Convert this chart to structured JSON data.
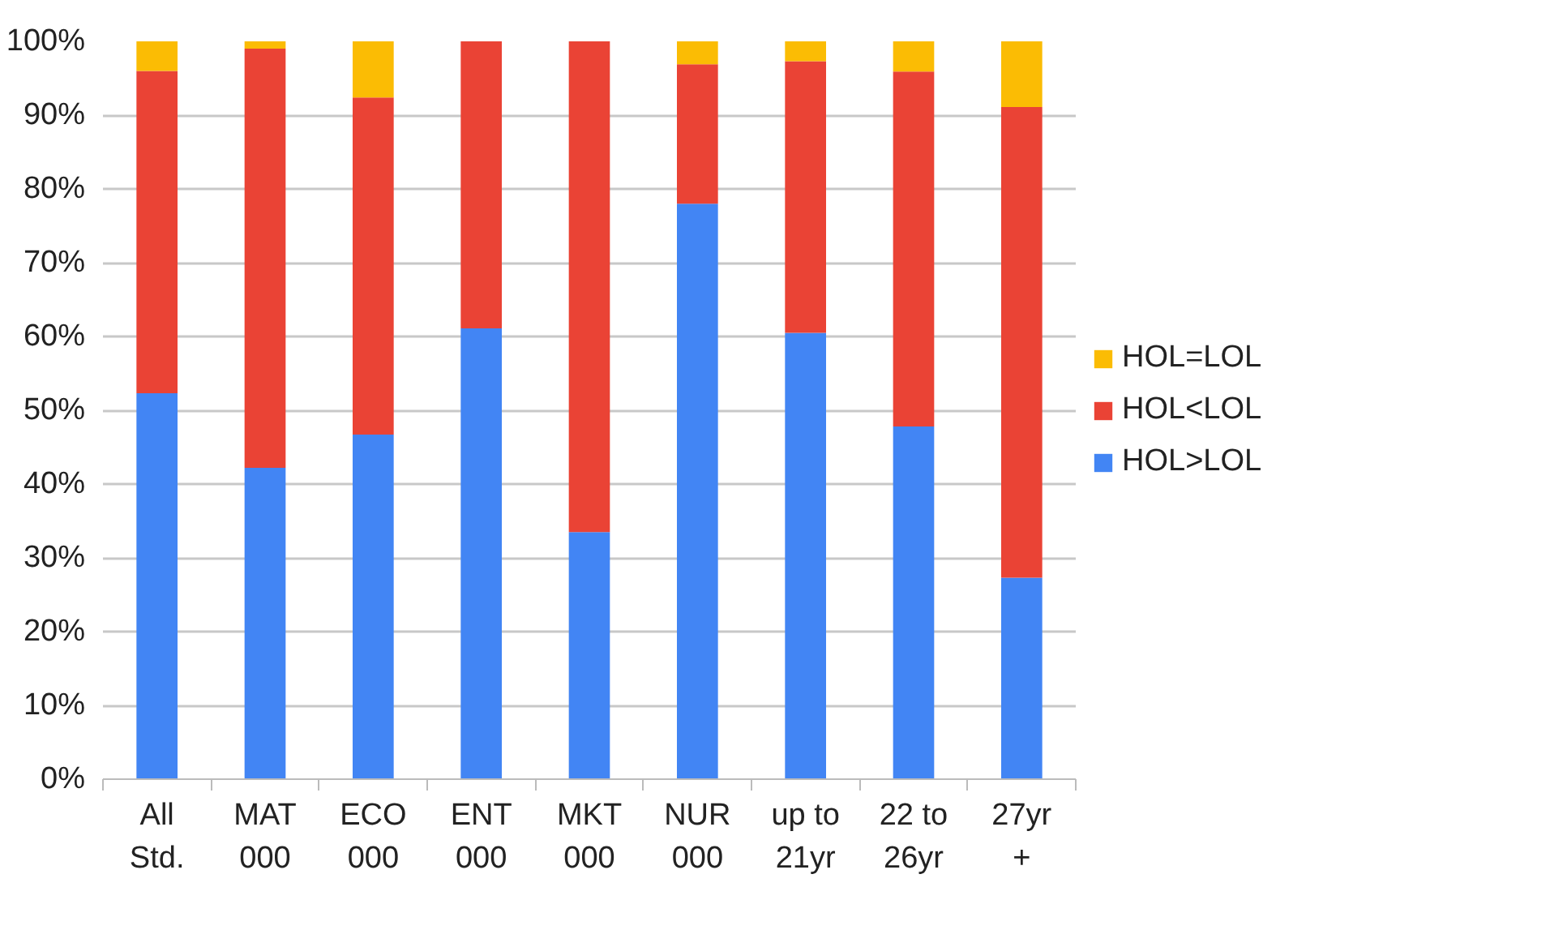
{
  "chart_data": {
    "type": "bar",
    "stacked": true,
    "categories": [
      "All Std.",
      "MAT 000",
      "ECO 000",
      "ENT 000",
      "MKT 000",
      "NUR 000",
      "up to 21yr",
      "22 to 26yr",
      "27yr +"
    ],
    "series": [
      {
        "name": "HOL>LOL",
        "color": "#4285f4",
        "values": [
          52.3,
          42.2,
          46.7,
          61.1,
          33.5,
          78.0,
          60.5,
          47.8,
          27.3
        ]
      },
      {
        "name": "HOL<LOL",
        "color": "#ea4335",
        "values": [
          43.7,
          56.8,
          45.7,
          38.9,
          66.5,
          18.9,
          36.8,
          48.1,
          63.8
        ]
      },
      {
        "name": "HOL=LOL",
        "color": "#fbbc04",
        "values": [
          4.0,
          1.0,
          7.6,
          0,
          0,
          3.1,
          2.7,
          4.1,
          8.9
        ]
      }
    ],
    "ylim": [
      0,
      100
    ],
    "yticks": [
      {
        "value": 0,
        "label": "0%"
      },
      {
        "value": 10,
        "label": "10%"
      },
      {
        "value": 20,
        "label": "20%"
      },
      {
        "value": 30,
        "label": "30%"
      },
      {
        "value": 40,
        "label": "40%"
      },
      {
        "value": 50,
        "label": "50%"
      },
      {
        "value": 60,
        "label": "60%"
      },
      {
        "value": 70,
        "label": "70%"
      },
      {
        "value": 80,
        "label": "80%"
      },
      {
        "value": 90,
        "label": "90%"
      },
      {
        "value": 100,
        "label": "100%"
      }
    ],
    "grid": "y",
    "legend": "right"
  }
}
